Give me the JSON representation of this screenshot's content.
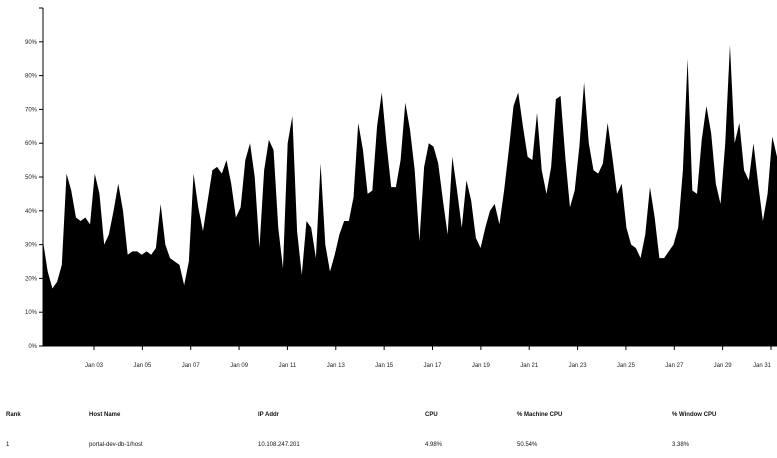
{
  "chart_data": {
    "type": "area",
    "color": "#000000",
    "title": "",
    "xlabel": "",
    "ylabel": "",
    "ylim": [
      0,
      100
    ],
    "yticks": [
      0,
      10,
      20,
      30,
      40,
      50,
      60,
      70,
      80,
      90,
      100
    ],
    "ytick_labels": [
      "0%",
      "10%",
      "20%",
      "30%",
      "40%",
      "50%",
      "60%",
      "70%",
      "80%",
      "90%",
      ""
    ],
    "xtick_labels": [
      "Jan 03",
      "Jan 05",
      "Jan 07",
      "Jan 09",
      "Jan 11",
      "Jan 13",
      "Jan 15",
      "Jan 17",
      "Jan 19",
      "Jan 21",
      "Jan 23",
      "Jan 25",
      "Jan 27",
      "Jan 29",
      "Jan 31"
    ],
    "x_start": "Jan 02",
    "x_end": "Jan 31",
    "values": [
      31,
      22,
      17,
      19,
      24,
      51,
      46,
      38,
      37,
      38,
      36,
      51,
      45,
      30,
      33,
      40,
      48,
      40,
      27,
      28,
      28,
      27,
      28,
      27,
      29,
      42,
      30,
      26,
      25,
      24,
      18,
      25,
      51,
      41,
      34,
      43,
      52,
      53,
      51,
      55,
      48,
      38,
      41,
      55,
      60,
      50,
      29,
      52,
      61,
      58,
      35,
      23,
      60,
      68,
      34,
      21,
      37,
      35,
      26,
      54,
      30,
      22,
      27,
      33,
      37,
      37,
      44,
      66,
      58,
      45,
      46,
      65,
      75,
      60,
      47,
      47,
      55,
      72,
      64,
      52,
      31,
      53,
      60,
      59,
      54,
      43,
      33,
      56,
      46,
      35,
      49,
      43,
      32,
      29,
      35,
      40,
      42,
      36,
      46,
      58,
      71,
      75,
      65,
      56,
      55,
      69,
      52,
      45,
      53,
      73,
      74,
      56,
      41,
      46,
      59,
      78,
      60,
      52,
      51,
      54,
      66,
      56,
      45,
      48,
      35,
      30,
      29,
      26,
      33,
      47,
      38,
      26,
      26,
      28,
      30,
      35,
      52,
      85,
      46,
      45,
      61,
      71,
      63,
      48,
      42,
      60,
      89,
      60,
      66,
      52,
      49,
      60,
      48,
      37,
      45,
      62,
      56
    ]
  },
  "table": {
    "headers": [
      "Rank",
      "Host Name",
      "IP Addr",
      "CPU",
      "% Machine CPU",
      "% Window CPU"
    ],
    "rows": [
      [
        "1",
        "portal-dev-db-1/host",
        "10.108.247.201",
        "4.98%",
        "50.54%",
        "3.38%"
      ]
    ]
  }
}
